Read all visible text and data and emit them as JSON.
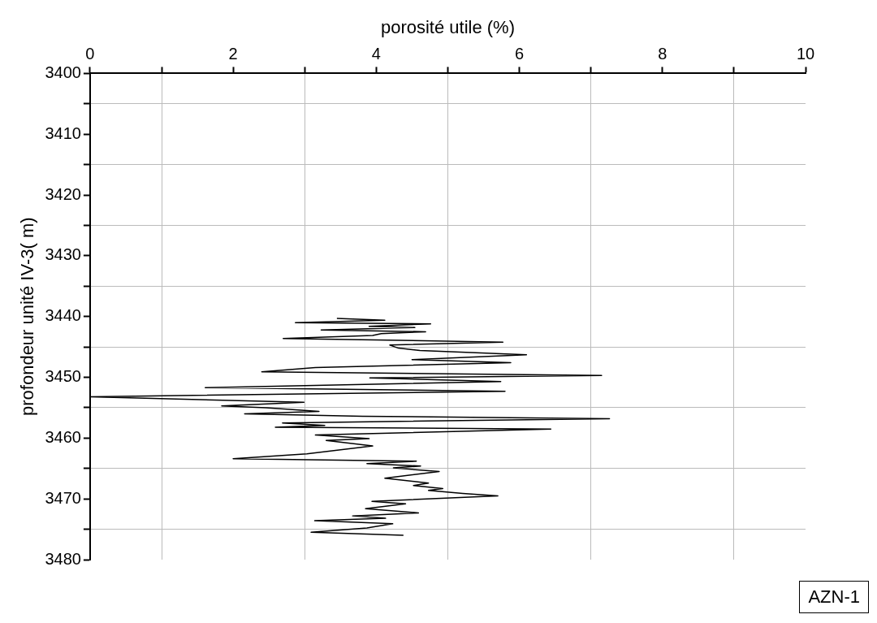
{
  "chart_data": {
    "type": "line",
    "xlabel": "porosité utile (%)",
    "ylabel": "profondeur unité IV-3( m)",
    "annotations": [
      "AZN-1"
    ],
    "color": "#000000",
    "marker": "none",
    "line_style": "solid",
    "legend": false,
    "grid": true,
    "x": [
      3.45,
      4.12,
      2.87,
      4.76,
      3.9,
      4.54,
      3.23,
      4.69,
      4.07,
      3.95,
      2.7,
      5.77,
      4.19,
      4.31,
      4.61,
      6.1,
      4.5,
      5.88,
      3.15,
      2.4,
      7.15,
      3.91,
      5.74,
      1.61,
      5.8,
      0,
      2.99,
      1.84,
      2.46,
      3.2,
      2.16,
      3.81,
      7.26,
      2.69,
      3.28,
      2.59,
      6.44,
      3.15,
      3.9,
      3.3,
      3.95,
      3.03,
      2.0,
      4.56,
      3.87,
      4.62,
      4.24,
      4.88,
      4.12,
      4.73,
      4.52,
      4.93,
      4.73,
      5.21,
      5.7,
      3.94,
      4.41,
      3.85,
      4.59,
      3.67,
      4.13,
      3.14,
      4.23,
      3.87,
      3.09,
      4.38
    ],
    "values": [
      3440.3,
      3440.6,
      3441.0,
      3441.2,
      3441.6,
      3441.8,
      3442.2,
      3442.5,
      3442.8,
      3443.1,
      3443.6,
      3444.2,
      3444.7,
      3445.2,
      3445.6,
      3446.3,
      3447.1,
      3447.6,
      3448.4,
      3449.1,
      3449.7,
      3450.1,
      3450.7,
      3451.7,
      3452.3,
      3453.2,
      3454.1,
      3454.7,
      3455.0,
      3455.6,
      3456.0,
      3456.4,
      3456.8,
      3457.5,
      3457.9,
      3458.2,
      3458.5,
      3459.5,
      3460.1,
      3460.4,
      3461.3,
      3462.6,
      3463.4,
      3463.8,
      3464.2,
      3464.6,
      3464.9,
      3465.5,
      3466.6,
      3467.4,
      3467.8,
      3468.3,
      3468.6,
      3469.1,
      3469.5,
      3470.4,
      3470.8,
      3471.6,
      3472.3,
      3472.8,
      3473.2,
      3473.6,
      3474.1,
      3474.8,
      3475.5,
      3476.0
    ],
    "xlim": [
      0,
      10
    ],
    "xticks": [
      0,
      {
        "value": 1,
        "label": null
      },
      2,
      {
        "value": 3,
        "label": null
      },
      4,
      {
        "value": 5,
        "label": null
      },
      6,
      {
        "value": 7,
        "label": null
      },
      8,
      {
        "value": 9,
        "label": null
      },
      10
    ],
    "ylim": [
      3480,
      3400
    ],
    "yticks": [
      3400,
      {
        "value": 3405,
        "label": null
      },
      3410,
      {
        "value": 3415,
        "label": null
      },
      3420,
      {
        "value": 3425,
        "label": null
      },
      3430,
      {
        "value": 3435,
        "label": null
      },
      3440,
      {
        "value": 3445,
        "label": null
      },
      3450,
      {
        "value": 3455,
        "label": null
      },
      3460,
      {
        "value": 3465,
        "label": null
      },
      3470,
      {
        "value": 3475,
        "label": null
      },
      3480
    ]
  }
}
